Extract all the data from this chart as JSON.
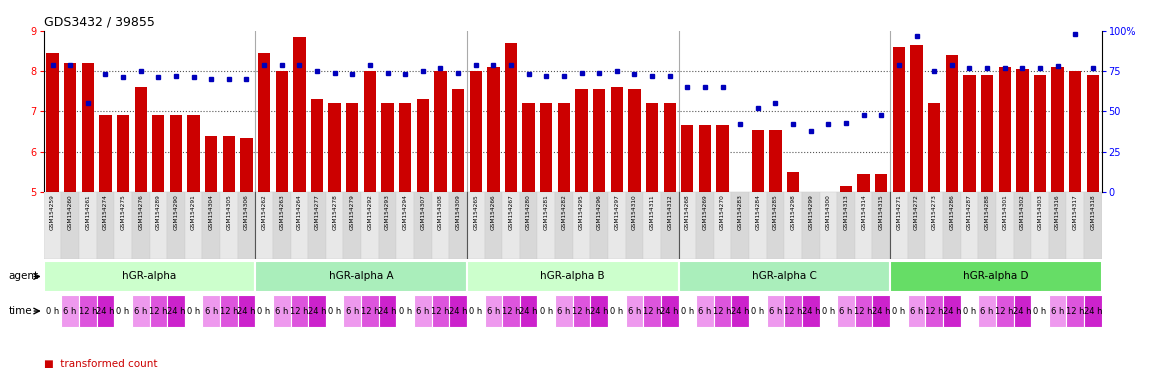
{
  "title": "GDS3432 / 39855",
  "gsm_labels": [
    "GSM154259",
    "GSM154260",
    "GSM154261",
    "GSM154274",
    "GSM154275",
    "GSM154276",
    "GSM154289",
    "GSM154290",
    "GSM154291",
    "GSM154304",
    "GSM154305",
    "GSM154306",
    "GSM154262",
    "GSM154263",
    "GSM154264",
    "GSM154277",
    "GSM154278",
    "GSM154279",
    "GSM154292",
    "GSM154293",
    "GSM154294",
    "GSM154307",
    "GSM154308",
    "GSM154309",
    "GSM154265",
    "GSM154266",
    "GSM154267",
    "GSM154280",
    "GSM154281",
    "GSM154282",
    "GSM154295",
    "GSM154296",
    "GSM154297",
    "GSM154310",
    "GSM154311",
    "GSM154312",
    "GSM154268",
    "GSM154269",
    "GSM154270",
    "GSM154283",
    "GSM154284",
    "GSM154285",
    "GSM154298",
    "GSM154299",
    "GSM154300",
    "GSM154313",
    "GSM154314",
    "GSM154315",
    "GSM154271",
    "GSM154272",
    "GSM154273",
    "GSM154286",
    "GSM154287",
    "GSM154288",
    "GSM154301",
    "GSM154302",
    "GSM154303",
    "GSM154316",
    "GSM154317",
    "GSM154318"
  ],
  "bar_values": [
    8.45,
    8.2,
    8.2,
    6.9,
    6.9,
    7.6,
    6.9,
    6.9,
    6.9,
    6.4,
    6.4,
    6.35,
    8.45,
    8.0,
    8.85,
    7.3,
    7.2,
    7.2,
    8.0,
    7.2,
    7.2,
    7.3,
    8.0,
    7.55,
    8.0,
    8.1,
    8.7,
    7.2,
    7.2,
    7.2,
    7.55,
    7.55,
    7.6,
    7.55,
    7.2,
    7.2,
    6.65,
    6.65,
    6.65,
    5.0,
    6.55,
    6.55,
    5.5,
    5.0,
    5.0,
    5.15,
    5.45,
    5.45,
    8.6,
    8.65,
    7.2,
    8.4,
    7.9,
    7.9,
    8.1,
    8.05,
    7.9,
    8.1,
    8.0,
    7.9
  ],
  "percentile_values": [
    79,
    79,
    55,
    73,
    71,
    75,
    71,
    72,
    71,
    70,
    70,
    70,
    79,
    79,
    79,
    75,
    74,
    73,
    79,
    74,
    73,
    75,
    77,
    74,
    79,
    79,
    79,
    73,
    72,
    72,
    74,
    74,
    75,
    73,
    72,
    72,
    65,
    65,
    65,
    42,
    52,
    55,
    42,
    38,
    42,
    43,
    48,
    48,
    79,
    97,
    75,
    79,
    77,
    77,
    77,
    77,
    77,
    78,
    98,
    77
  ],
  "agents": [
    {
      "label": "hGR-alpha",
      "start": 0,
      "end": 12,
      "color": "#ccffcc"
    },
    {
      "label": "hGR-alpha A",
      "start": 12,
      "end": 24,
      "color": "#99ee99"
    },
    {
      "label": "hGR-alpha B",
      "start": 24,
      "end": 36,
      "color": "#ccffcc"
    },
    {
      "label": "hGR-alpha C",
      "start": 36,
      "end": 48,
      "color": "#99ee99"
    },
    {
      "label": "hGR-alpha D",
      "start": 48,
      "end": 60,
      "color": "#55dd55"
    }
  ],
  "time_pattern": [
    0,
    1,
    2,
    3,
    0,
    1,
    2,
    3,
    0,
    1,
    2,
    3,
    0,
    1,
    2,
    3,
    0,
    1,
    2,
    3,
    0,
    1,
    2,
    3,
    0,
    1,
    2,
    3,
    0,
    1,
    2,
    3,
    0,
    1,
    2,
    3,
    0,
    1,
    2,
    3,
    0,
    1,
    2,
    3,
    0,
    1,
    2,
    3,
    0,
    1,
    2,
    3,
    0,
    1,
    2,
    3,
    0,
    1,
    2,
    3
  ],
  "time_labels": [
    "0 h",
    "6 h",
    "12 h",
    "24 h"
  ],
  "time_colors": [
    "#ffffff",
    "#ee99ee",
    "#dd55dd",
    "#cc22cc"
  ],
  "bar_color": "#cc0000",
  "dot_color": "#0000bb",
  "ylim_left": [
    5,
    9
  ],
  "ylim_right": [
    0,
    100
  ],
  "yticks_left": [
    5,
    6,
    7,
    8,
    9
  ],
  "yticks_right": [
    0,
    25,
    50,
    75,
    100
  ],
  "right_tick_labels": [
    "0",
    "25",
    "50",
    "75",
    "100%"
  ],
  "gsm_box_colors": [
    "#e8e8e8",
    "#d8d8d8"
  ]
}
